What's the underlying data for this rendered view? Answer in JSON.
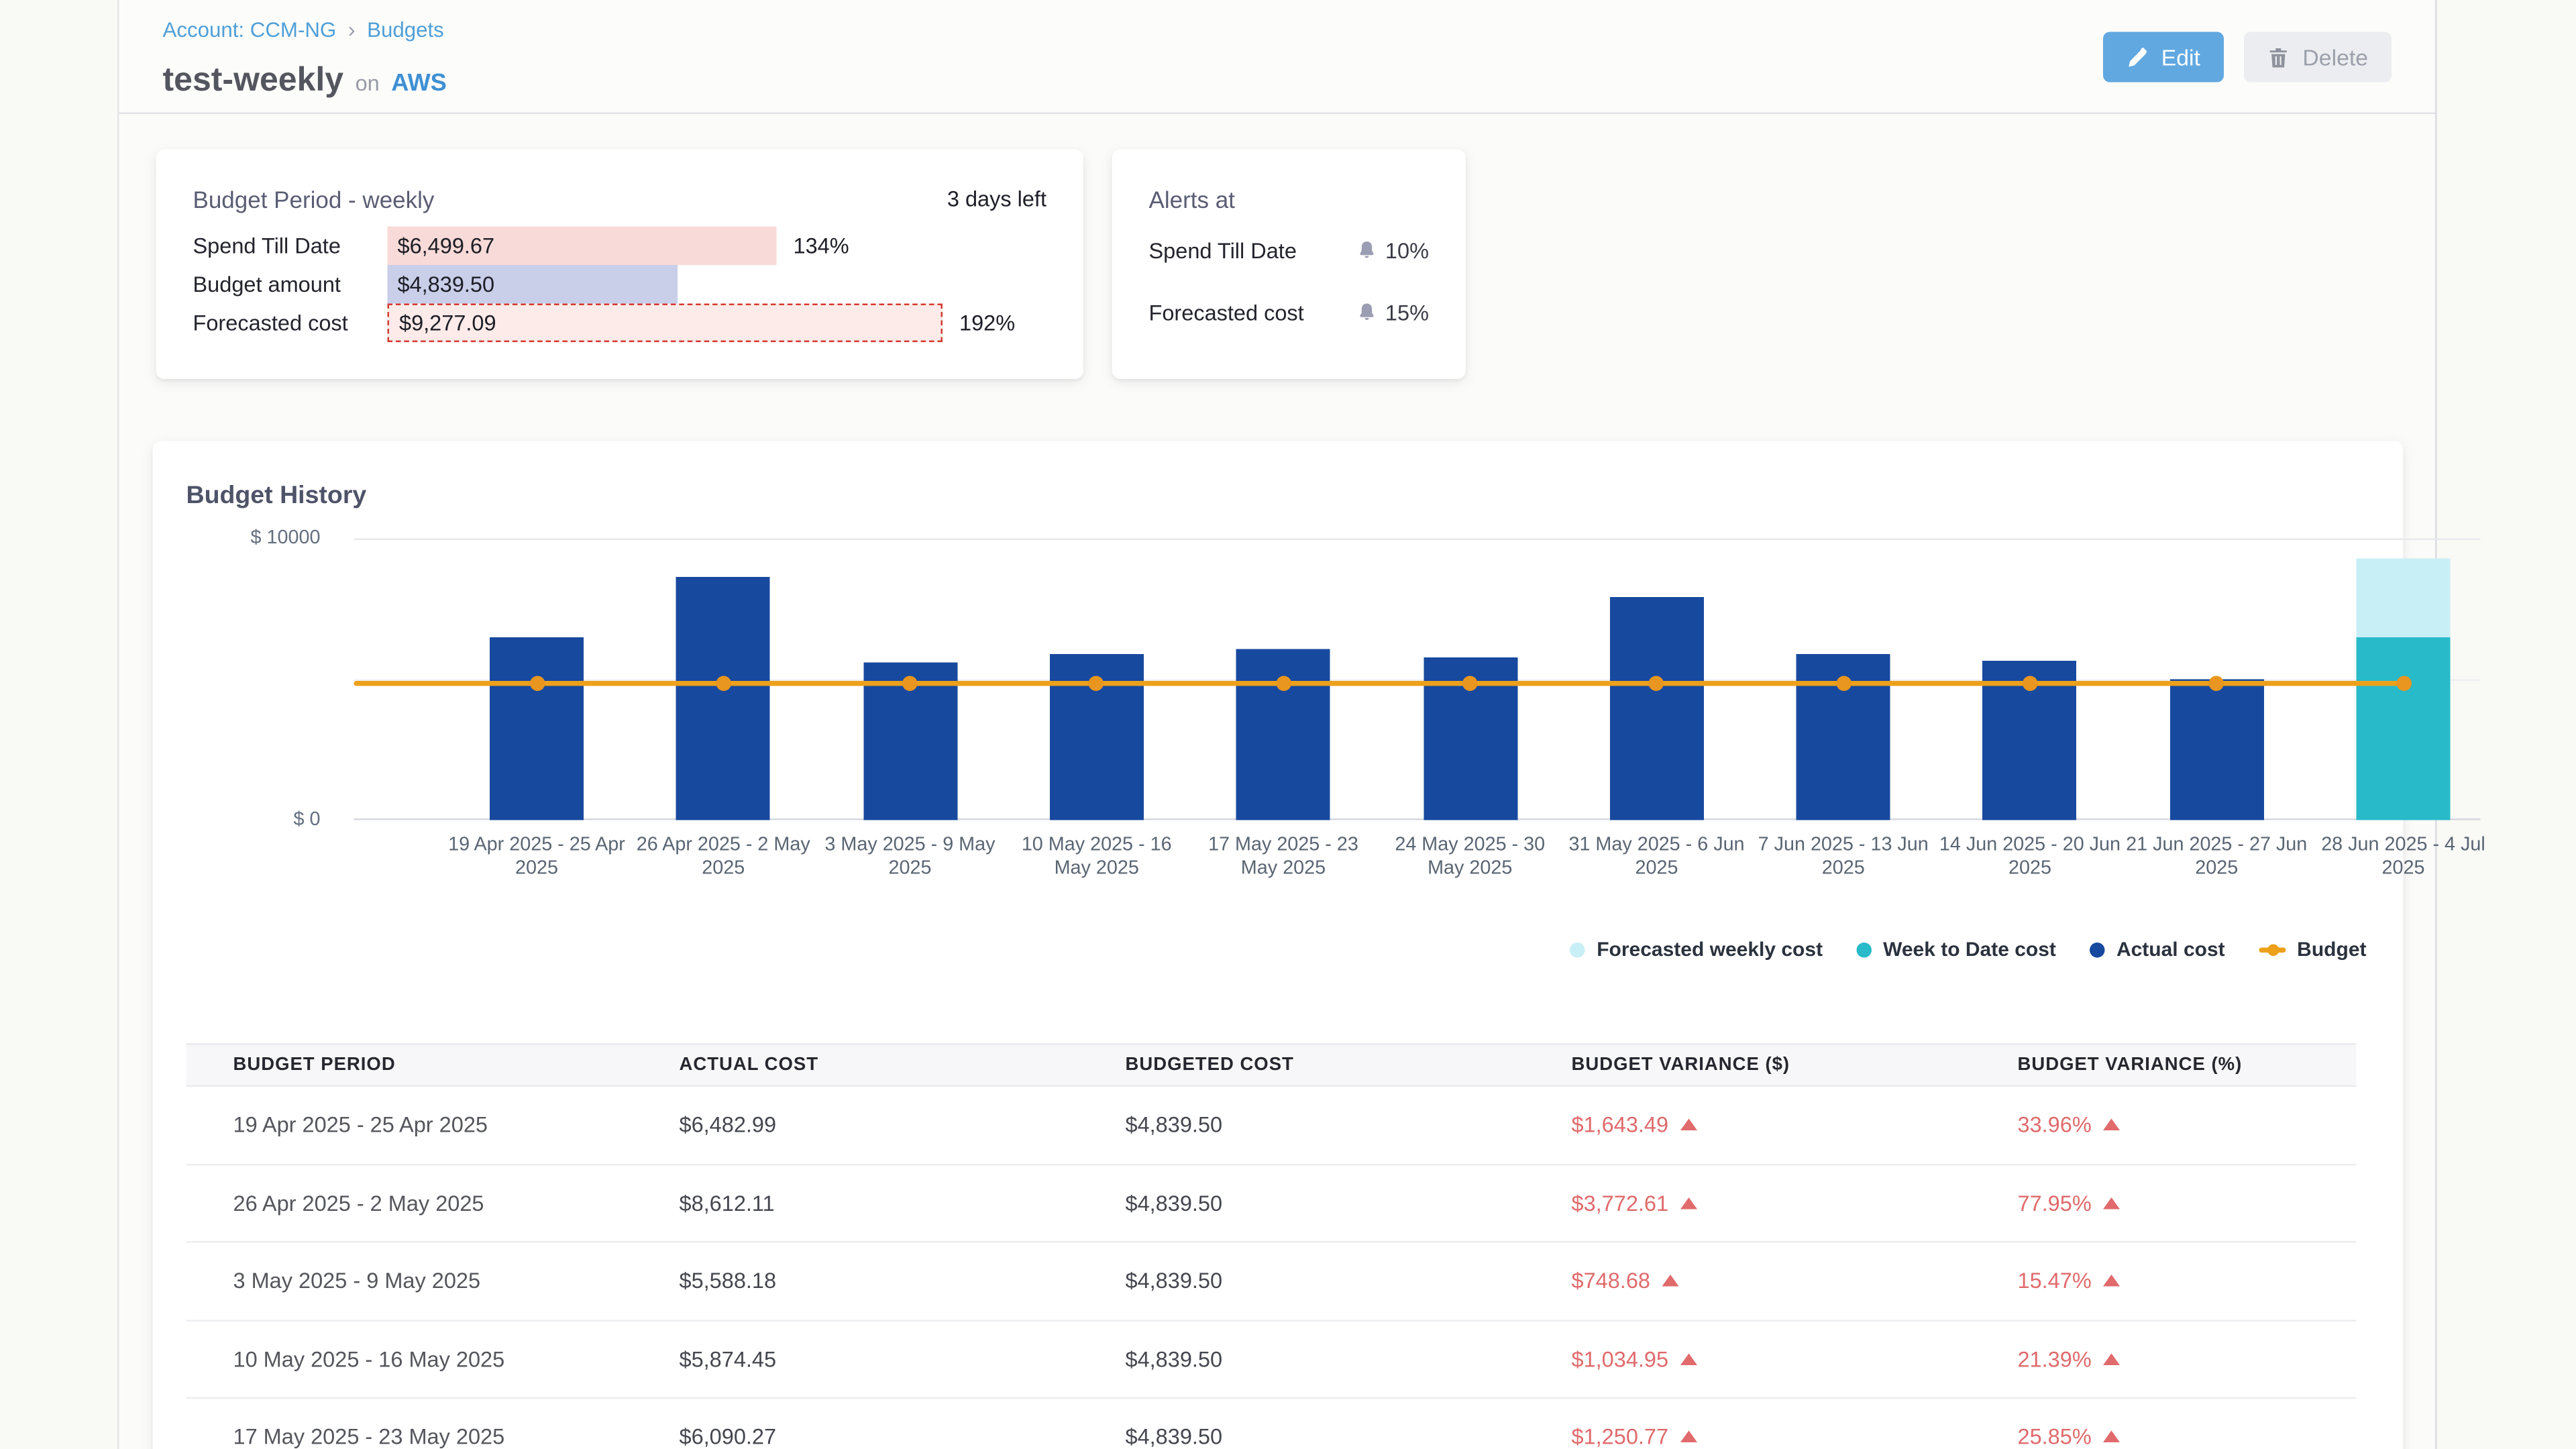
{
  "breadcrumb": {
    "account": "Account: CCM-NG",
    "separator": "›",
    "section": "Budgets"
  },
  "header": {
    "title": "test-weekly",
    "conjunction": "on",
    "platform": "AWS",
    "edit_label": "Edit",
    "delete_label": "Delete"
  },
  "budget_period": {
    "title": "Budget Period - weekly",
    "days_left": "3 days left",
    "rows": [
      {
        "label": "Spend Till Date",
        "value": "$6,499.67",
        "value_num": 6499.67,
        "percent": "134%",
        "kind": "spend"
      },
      {
        "label": "Budget amount",
        "value": "$4,839.50",
        "value_num": 4839.5,
        "percent": "",
        "kind": "budget"
      },
      {
        "label": "Forecasted cost",
        "value": "$9,277.09",
        "value_num": 9277.09,
        "percent": "192%",
        "kind": "forecast"
      }
    ],
    "colors": {
      "spend": "#f8dbd8",
      "budget": "#c9cee9",
      "forecast": "#fcebe9",
      "forecast_border": "#d43a31"
    }
  },
  "alerts": {
    "title": "Alerts at",
    "rows": [
      {
        "label": "Spend Till Date",
        "percent": "10%"
      },
      {
        "label": "Forecasted cost",
        "percent": "15%"
      }
    ]
  },
  "budget_history": {
    "title": "Budget History",
    "y_top_label": "$ 10000",
    "y_bottom_label": "$ 0"
  },
  "chart_data": {
    "type": "bar",
    "title": "Budget History",
    "ylim": [
      0,
      10000
    ],
    "y_ticks": [
      "$ 0",
      "$ 10000"
    ],
    "grid": true,
    "legend_position": "bottom-right",
    "categories": [
      "19 Apr 2025 - 25 Apr 2025",
      "26 Apr 2025 - 2 May 2025",
      "3 May 2025 - 9 May 2025",
      "10 May 2025 - 16 May 2025",
      "17 May 2025 - 23 May 2025",
      "24 May 2025 - 30 May 2025",
      "31 May 2025 - 6 Jun 2025",
      "7 Jun 2025 - 13 Jun 2025",
      "14 Jun 2025 - 20 Jun 2025",
      "21 Jun 2025 - 27 Jun 2025",
      "28 Jun 2025 - 4 Jul 2025"
    ],
    "series": [
      {
        "name": "Actual cost",
        "type": "column",
        "color": "#17499e",
        "values": [
          6482.99,
          8612.11,
          5588.18,
          5874.45,
          6090.27,
          5800,
          7900,
          5920,
          5630,
          5000,
          null
        ]
      },
      {
        "name": "Week to Date cost",
        "type": "column",
        "color": "#28bac9",
        "values": [
          null,
          null,
          null,
          null,
          null,
          null,
          null,
          null,
          null,
          null,
          6499.67
        ]
      },
      {
        "name": "Forecasted weekly cost",
        "type": "column",
        "stack_on": "Week to Date cost",
        "color": "#c9eff6",
        "values": [
          null,
          null,
          null,
          null,
          null,
          null,
          null,
          null,
          null,
          null,
          9277.09
        ]
      },
      {
        "name": "Budget",
        "type": "line",
        "color": "#eda01a",
        "values": [
          4839.5,
          4839.5,
          4839.5,
          4839.5,
          4839.5,
          4839.5,
          4839.5,
          4839.5,
          4839.5,
          4839.5,
          4839.5
        ]
      }
    ]
  },
  "legend": [
    {
      "label": "Forecasted weekly cost",
      "color": "#c9eff6",
      "marker": "dot"
    },
    {
      "label": "Week to Date cost",
      "color": "#28bac9",
      "marker": "dot"
    },
    {
      "label": "Actual cost",
      "color": "#17499e",
      "marker": "dot"
    },
    {
      "label": "Budget",
      "color": "#eda01a",
      "marker": "line"
    }
  ],
  "table": {
    "headers": [
      "BUDGET PERIOD",
      "ACTUAL COST",
      "BUDGETED COST",
      "BUDGET VARIANCE ($)",
      "BUDGET VARIANCE (%)"
    ],
    "rows": [
      {
        "period": "19 Apr 2025 - 25 Apr 2025",
        "actual": "$6,482.99",
        "budgeted": "$4,839.50",
        "variance_usd": "$1,643.49",
        "variance_pct": "33.96%"
      },
      {
        "period": "26 Apr 2025 - 2 May 2025",
        "actual": "$8,612.11",
        "budgeted": "$4,839.50",
        "variance_usd": "$3,772.61",
        "variance_pct": "77.95%"
      },
      {
        "period": "3 May 2025 - 9 May 2025",
        "actual": "$5,588.18",
        "budgeted": "$4,839.50",
        "variance_usd": "$748.68",
        "variance_pct": "15.47%"
      },
      {
        "period": "10 May 2025 - 16 May 2025",
        "actual": "$5,874.45",
        "budgeted": "$4,839.50",
        "variance_usd": "$1,034.95",
        "variance_pct": "21.39%"
      },
      {
        "period": "17 May 2025 - 23 May 2025",
        "actual": "$6,090.27",
        "budgeted": "$4,839.50",
        "variance_usd": "$1,250.77",
        "variance_pct": "25.85%"
      }
    ]
  }
}
